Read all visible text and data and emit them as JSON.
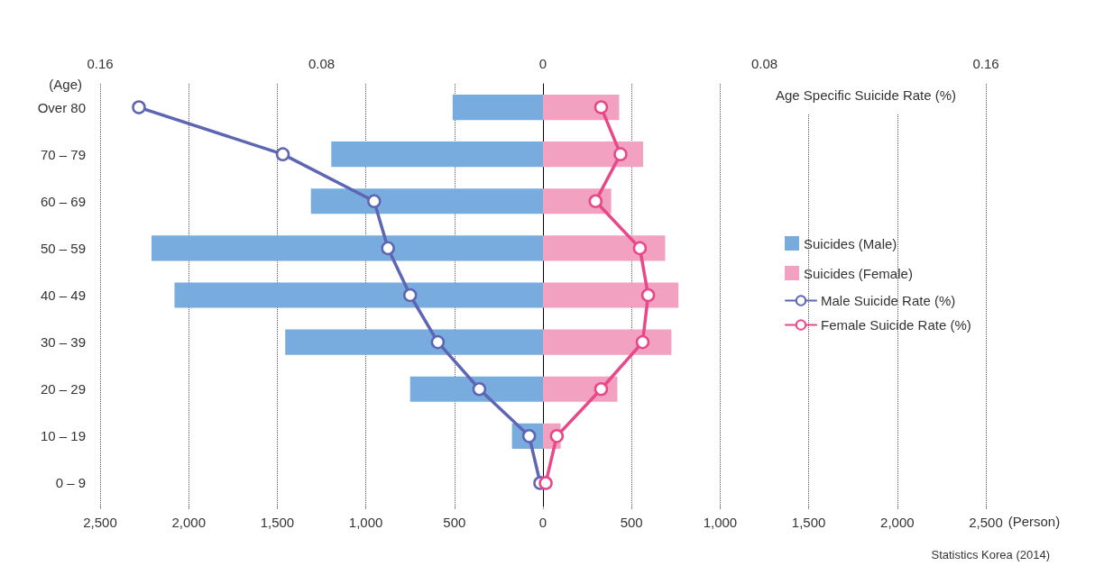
{
  "chart_data": {
    "type": "bar",
    "orientation": "horizontal",
    "stacked": true,
    "x2label": "Age Specific Suicide Rate (%)",
    "ylabel": "(Age)",
    "xlabel": "(Person)",
    "categories": [
      "Over 80",
      "70 – 79",
      "60 – 69",
      "50 – 59",
      "40 – 49",
      "30 – 39",
      "20 – 29",
      "10 – 19",
      "0 – 9"
    ],
    "xlim": [
      -2500,
      2500
    ],
    "xticks": [
      {
        "value": -2500,
        "label": "2,500"
      },
      {
        "value": -2000,
        "label": "2,000"
      },
      {
        "value": -1500,
        "label": "1,500"
      },
      {
        "value": -1000,
        "label": "1,000"
      },
      {
        "value": -500,
        "label": "500"
      },
      0,
      500,
      {
        "value": 1000,
        "label": "1,000"
      },
      {
        "value": 1500,
        "label": "1,500"
      },
      {
        "value": 2000,
        "label": "2,000"
      },
      {
        "value": 2500,
        "label": "2,500"
      }
    ],
    "x2lim": [
      -0.16,
      0.16
    ],
    "x2ticks": [
      {
        "value": -0.16,
        "label": "0.16"
      },
      {
        "value": -0.08,
        "label": "0.08"
      },
      0,
      0.08,
      0.16
    ],
    "series": [
      {
        "name": "Suicides (Male)",
        "color": "#78acdf",
        "values": [
          -510,
          -1195,
          -1310,
          -2210,
          -2080,
          -1455,
          -750,
          -175,
          0
        ]
      },
      {
        "name": "Suicides (Female)",
        "color": "#f2a1c0",
        "values": [
          430,
          565,
          385,
          690,
          765,
          725,
          420,
          100,
          0
        ]
      },
      {
        "name": "Male Suicide Rate (%)",
        "type": "line",
        "axis": "x2",
        "color": "#5e66b4",
        "values": [
          -0.146,
          -0.094,
          -0.061,
          -0.056,
          -0.048,
          -0.038,
          -0.023,
          -0.005,
          -0.001
        ]
      },
      {
        "name": "Female Suicide Rate (%)",
        "type": "line",
        "axis": "x2",
        "color": "#e8488a",
        "values": [
          0.021,
          0.028,
          0.019,
          0.035,
          0.038,
          0.036,
          0.021,
          0.005,
          0.001
        ]
      }
    ],
    "marker": "circle",
    "line_style": "solid",
    "grid": "x",
    "legend": "right",
    "annotations": [
      "Statistics Korea (2014)"
    ]
  }
}
